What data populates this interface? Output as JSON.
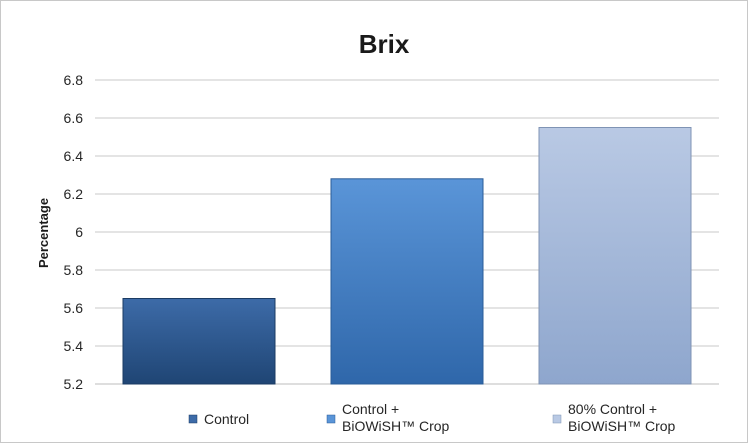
{
  "chart_data": {
    "type": "bar",
    "title": "Brix",
    "xlabel": "",
    "ylabel": "Percentage",
    "ylim": [
      5.2,
      6.8
    ],
    "yticks": [
      "5.2",
      "5.4",
      "5.6",
      "5.8",
      "6",
      "6.2",
      "6.4",
      "6.6",
      "6.8"
    ],
    "grid": true,
    "legend_position": "bottom",
    "categories": [
      "Control",
      "Control + BiOWiSH™ Crop",
      "80% Control + BiOWiSH™ Crop"
    ],
    "series": [
      {
        "name": "Control",
        "legend_lines": [
          "Control"
        ],
        "value": 5.65,
        "colors": {
          "top": "#3d6ba8",
          "bottom": "#1f4574",
          "edge": "#1b3b63"
        }
      },
      {
        "name": "Control + BiOWiSH™ Crop",
        "legend_lines": [
          "Control +",
          "BiOWiSH™ Crop"
        ],
        "value": 6.28,
        "colors": {
          "top": "#5a95d8",
          "bottom": "#2f67aa",
          "edge": "#2a5c98"
        }
      },
      {
        "name": "80% Control + BiOWiSH™ Crop",
        "legend_lines": [
          "80% Control +",
          "BiOWiSH™ Crop"
        ],
        "value": 6.55,
        "colors": {
          "top": "#b9c9e4",
          "bottom": "#8ea6cd",
          "edge": "#7f93b4"
        }
      }
    ]
  }
}
